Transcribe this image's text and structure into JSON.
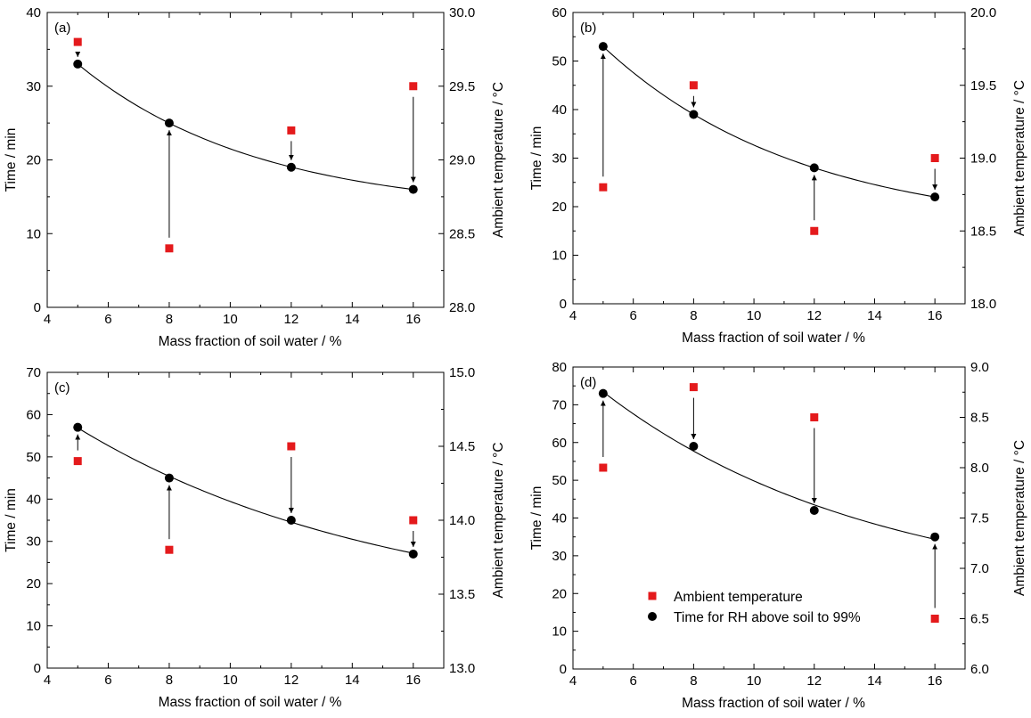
{
  "colors": {
    "ambient": "#e41a1c",
    "time": "#000000"
  },
  "legend": {
    "ambient_label": "Ambient temperature",
    "time_label": "Time for RH above soil to 99%",
    "placement": "inside lower-left of panel (d)"
  },
  "chart_data": [
    {
      "type": "scatter",
      "panel_label": "(a)",
      "xlabel": "Mass fraction of soil water / %",
      "ylabel": "Time / min",
      "y2label": "Ambient temperature / °C",
      "xlim": [
        4,
        17
      ],
      "ylim": [
        0,
        40
      ],
      "y2lim": [
        28.0,
        30.0
      ],
      "xticks": [
        4,
        6,
        8,
        10,
        12,
        14,
        16
      ],
      "yticks": [
        0,
        10,
        20,
        30,
        40
      ],
      "y2ticks": [
        "28.0",
        "28.5",
        "29.0",
        "29.5",
        "30.0"
      ],
      "x": [
        5,
        8,
        12,
        16
      ],
      "series": [
        {
          "name": "Time for RH above soil to 99%",
          "axis": "left",
          "marker": "circle",
          "values": [
            33,
            25,
            19,
            16
          ]
        },
        {
          "name": "Ambient temperature",
          "axis": "right",
          "marker": "square",
          "values": [
            29.8,
            28.4,
            29.2,
            29.5
          ]
        }
      ],
      "fit_curve": true,
      "legend": false
    },
    {
      "type": "scatter",
      "panel_label": "(b)",
      "xlabel": "Mass fraction of soil water / %",
      "ylabel": "Time / min",
      "y2label": "Ambient temperature / °C",
      "xlim": [
        4,
        17
      ],
      "ylim": [
        0,
        60
      ],
      "y2lim": [
        18.0,
        20.0
      ],
      "xticks": [
        4,
        6,
        8,
        10,
        12,
        14,
        16
      ],
      "yticks": [
        0,
        10,
        20,
        30,
        40,
        50,
        60
      ],
      "y2ticks": [
        "18.0",
        "18.5",
        "19.0",
        "19.5",
        "20.0"
      ],
      "x": [
        5,
        8,
        12,
        16
      ],
      "series": [
        {
          "name": "Time for RH above soil to 99%",
          "axis": "left",
          "marker": "circle",
          "values": [
            53,
            39,
            28,
            22
          ]
        },
        {
          "name": "Ambient temperature",
          "axis": "right",
          "marker": "square",
          "values": [
            18.8,
            19.5,
            18.5,
            19.0
          ]
        }
      ],
      "fit_curve": true,
      "legend": false
    },
    {
      "type": "scatter",
      "panel_label": "(c)",
      "xlabel": "Mass fraction of soil water / %",
      "ylabel": "Time / min",
      "y2label": "Ambient temperature / °C",
      "xlim": [
        4,
        17
      ],
      "ylim": [
        0,
        70
      ],
      "y2lim": [
        13.0,
        15.0
      ],
      "xticks": [
        4,
        6,
        8,
        10,
        12,
        14,
        16
      ],
      "yticks": [
        0,
        10,
        20,
        30,
        40,
        50,
        60,
        70
      ],
      "y2ticks": [
        "13.0",
        "13.5",
        "14.0",
        "14.5",
        "15.0"
      ],
      "x": [
        5,
        8,
        12,
        16
      ],
      "series": [
        {
          "name": "Time for RH above soil to 99%",
          "axis": "left",
          "marker": "circle",
          "values": [
            57,
            45,
            35,
            27
          ]
        },
        {
          "name": "Ambient temperature",
          "axis": "right",
          "marker": "square",
          "values": [
            14.4,
            13.8,
            14.5,
            14.0
          ]
        }
      ],
      "fit_curve": true,
      "legend": false
    },
    {
      "type": "scatter",
      "panel_label": "(d)",
      "xlabel": "Mass fraction of soil water / %",
      "ylabel": "Time / min",
      "y2label": "Ambient temperature / °C",
      "xlim": [
        4,
        17
      ],
      "ylim": [
        0,
        80
      ],
      "y2lim": [
        6.0,
        9.0
      ],
      "xticks": [
        4,
        6,
        8,
        10,
        12,
        14,
        16
      ],
      "yticks": [
        0,
        10,
        20,
        30,
        40,
        50,
        60,
        70,
        80
      ],
      "y2ticks": [
        "6.0",
        "6.5",
        "7.0",
        "7.5",
        "8.0",
        "8.5",
        "9.0"
      ],
      "x": [
        5,
        8,
        12,
        16
      ],
      "series": [
        {
          "name": "Time for RH above soil to 99%",
          "axis": "left",
          "marker": "circle",
          "values": [
            73,
            59,
            42,
            35
          ]
        },
        {
          "name": "Ambient temperature",
          "axis": "right",
          "marker": "square",
          "values": [
            8.0,
            8.8,
            8.5,
            6.5
          ]
        }
      ],
      "fit_curve": true,
      "legend": true
    }
  ]
}
